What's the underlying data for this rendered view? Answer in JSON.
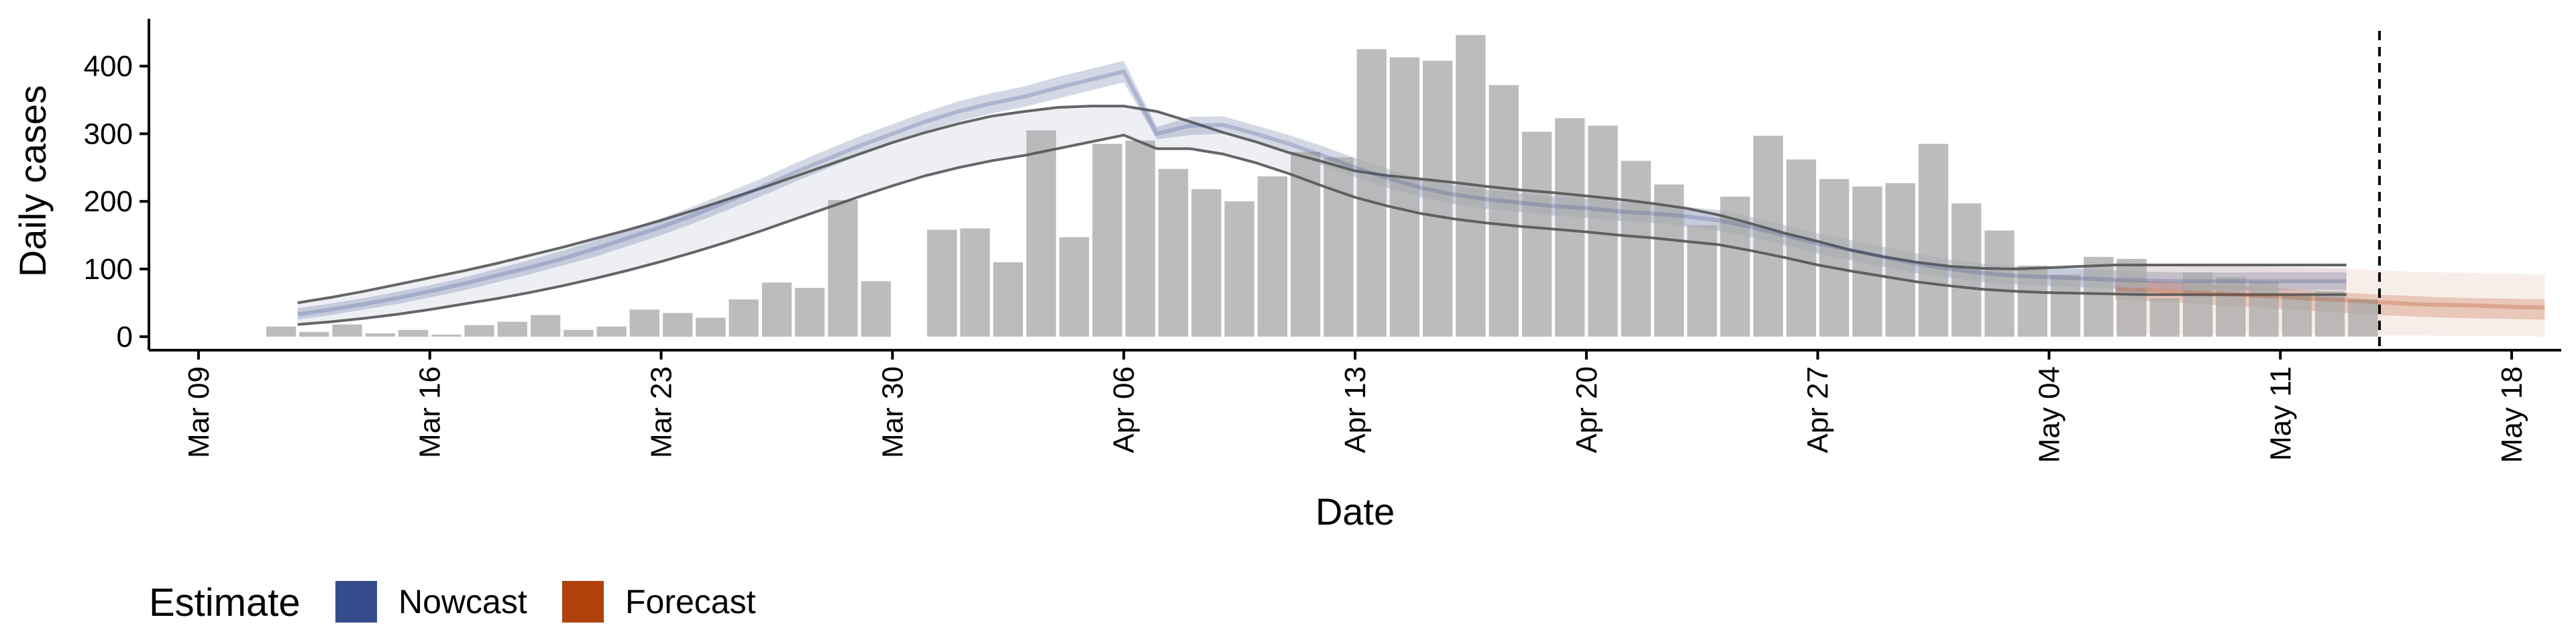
{
  "chart_data": {
    "type": "bar",
    "xlabel": "Date",
    "ylabel": "Daily cases",
    "ylim": [
      -20,
      470
    ],
    "x_range_days": [
      -1.5,
      71.5
    ],
    "x_start_label": "Mar 09",
    "y_ticks": [
      0,
      100,
      200,
      300,
      400
    ],
    "x_ticks": [
      {
        "day": 0,
        "label": "Mar 09"
      },
      {
        "day": 7,
        "label": "Mar 16"
      },
      {
        "day": 14,
        "label": "Mar 23"
      },
      {
        "day": 21,
        "label": "Mar 30"
      },
      {
        "day": 28,
        "label": "Apr 06"
      },
      {
        "day": 35,
        "label": "Apr 13"
      },
      {
        "day": 42,
        "label": "Apr 20"
      },
      {
        "day": 49,
        "label": "Apr 27"
      },
      {
        "day": 56,
        "label": "May 04"
      },
      {
        "day": 63,
        "label": "May 11"
      },
      {
        "day": 70,
        "label": "May 18"
      }
    ],
    "bars": {
      "start_day": 2.5,
      "values": [
        15,
        7,
        18,
        5,
        10,
        3,
        17,
        22,
        32,
        10,
        15,
        40,
        35,
        28,
        55,
        80,
        72,
        202,
        82,
        0,
        158,
        160,
        110,
        305,
        147,
        285,
        290,
        248,
        218,
        200,
        237,
        273,
        265,
        425,
        413,
        408,
        446,
        372,
        303,
        323,
        312,
        260,
        225,
        165,
        207,
        297,
        262,
        233,
        222,
        227,
        285,
        197,
        157,
        105,
        92,
        118,
        115,
        57,
        95,
        88,
        82,
        62,
        67,
        55
      ]
    },
    "vertical_line_day": 66,
    "series": [
      {
        "name": "Nowcast",
        "color": "#3B4F8A",
        "start_day": 3,
        "median": [
          33,
          40,
          48,
          57,
          67,
          78,
          90,
          102,
          115,
          130,
          146,
          162,
          180,
          200,
          220,
          242,
          262,
          282,
          300,
          318,
          333,
          345,
          355,
          368,
          380,
          392,
          300,
          312,
          313,
          300,
          285,
          268,
          250,
          234,
          220,
          210,
          203,
          198,
          193,
          190,
          185,
          182,
          178,
          172,
          162,
          150,
          138,
          128,
          118,
          108,
          100,
          94,
          90,
          88,
          86,
          84,
          83,
          82,
          82,
          82,
          82,
          82,
          82
        ],
        "lower50": [
          25,
          32,
          40,
          48,
          58,
          68,
          80,
          92,
          105,
          118,
          134,
          150,
          168,
          187,
          207,
          228,
          248,
          268,
          286,
          304,
          318,
          330,
          340,
          352,
          364,
          376,
          292,
          298,
          300,
          288,
          272,
          254,
          236,
          220,
          206,
          196,
          189,
          184,
          179,
          176,
          171,
          168,
          163,
          157,
          147,
          135,
          123,
          113,
          103,
          94,
          87,
          81,
          77,
          75,
          73,
          71,
          70,
          69,
          69,
          69,
          69,
          69,
          69
        ],
        "upper50": [
          42,
          49,
          57,
          66,
          76,
          87,
          100,
          113,
          127,
          142,
          158,
          175,
          193,
          213,
          233,
          255,
          276,
          296,
          314,
          332,
          348,
          360,
          370,
          384,
          396,
          408,
          310,
          325,
          326,
          312,
          298,
          282,
          264,
          248,
          234,
          224,
          217,
          212,
          207,
          204,
          199,
          196,
          192,
          187,
          177,
          165,
          153,
          143,
          133,
          123,
          114,
          108,
          104,
          102,
          100,
          98,
          96,
          95,
          95,
          95,
          95,
          95,
          95
        ],
        "lower90": [
          18,
          22,
          27,
          33,
          40,
          48,
          56,
          65,
          75,
          86,
          98,
          111,
          125,
          140,
          156,
          173,
          190,
          207,
          223,
          238,
          250,
          260,
          268,
          278,
          288,
          298,
          278,
          278,
          270,
          257,
          241,
          223,
          206,
          193,
          182,
          174,
          168,
          163,
          159,
          155,
          150,
          146,
          141,
          136,
          127,
          117,
          106,
          97,
          89,
          81,
          75,
          70,
          67,
          65,
          64,
          63,
          62,
          62,
          62,
          62,
          62,
          62,
          62
        ],
        "upper90": [
          50,
          58,
          67,
          77,
          87,
          97,
          108,
          120,
          132,
          145,
          158,
          172,
          187,
          203,
          219,
          236,
          253,
          270,
          287,
          302,
          315,
          326,
          333,
          339,
          341,
          341,
          333,
          318,
          302,
          288,
          272,
          259,
          245,
          238,
          233,
          228,
          222,
          217,
          213,
          208,
          203,
          197,
          190,
          180,
          167,
          153,
          141,
          128,
          118,
          110,
          104,
          101,
          100,
          102,
          104,
          106,
          106,
          106,
          106,
          106,
          106,
          106,
          106
        ]
      },
      {
        "name": "Forecast",
        "color": "#B5400F",
        "start_day": 58,
        "median": [
          70,
          68,
          66,
          64,
          61,
          59,
          56,
          54,
          51,
          48,
          47,
          46,
          44,
          43
        ],
        "lower50": [
          55,
          52,
          50,
          47,
          44,
          41,
          38,
          35,
          32,
          30,
          28,
          27,
          26,
          25
        ],
        "upper50": [
          85,
          82,
          80,
          77,
          74,
          71,
          68,
          65,
          62,
          60,
          58,
          57,
          56,
          55
        ],
        "lower90": [
          5,
          5,
          4,
          4,
          3,
          3,
          3,
          2,
          2,
          2,
          1,
          1,
          1,
          0
        ],
        "upper90": [
          110,
          108,
          107,
          105,
          104,
          103,
          101,
          100,
          98,
          96,
          95,
          94,
          93,
          92
        ]
      }
    ],
    "legend": {
      "title": "Estimate",
      "position": "bottom-left",
      "items": [
        {
          "label": "Nowcast",
          "color": "#354C8C"
        },
        {
          "label": "Forecast",
          "color": "#B0410A"
        }
      ]
    }
  }
}
